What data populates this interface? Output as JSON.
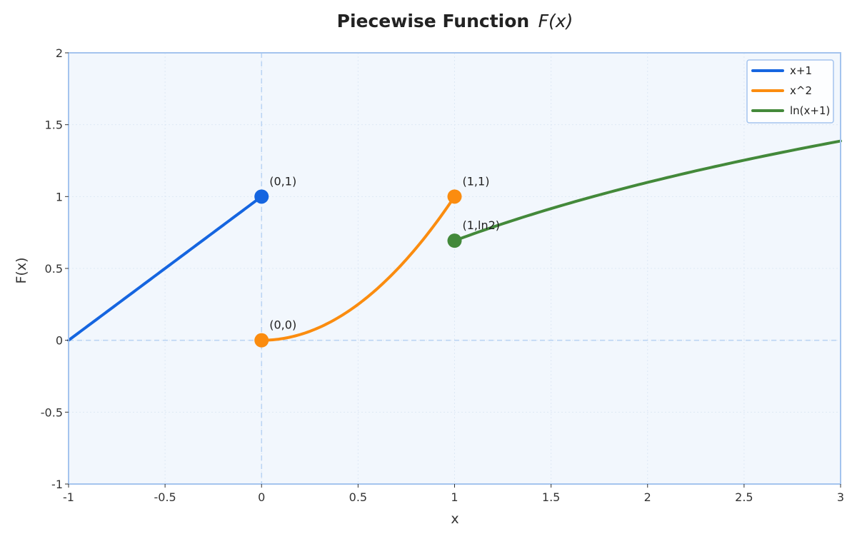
{
  "chart_data": {
    "type": "line",
    "title": "Piecewise Function",
    "title_math": "F(x)",
    "xlabel": "x",
    "ylabel": "F(x)",
    "xlim": [
      -1,
      3
    ],
    "ylim": [
      -1,
      2
    ],
    "x_ticks": [
      -1,
      -0.5,
      0,
      0.5,
      1,
      1.5,
      2,
      2.5,
      3
    ],
    "x_tick_labels": [
      "-1",
      "-0.5",
      "0",
      "0.5",
      "1",
      "1.5",
      "2",
      "2.5",
      "3"
    ],
    "y_ticks": [
      -1,
      -0.5,
      0,
      0.5,
      1,
      1.5,
      2
    ],
    "y_tick_labels": [
      "-1",
      "-0.5",
      "0",
      "0.5",
      "1",
      "1.5",
      "2"
    ],
    "grid": true,
    "legend_position": "top-right",
    "colors": {
      "plot_background": "#f2f7fd",
      "plot_border": "#a4c4ee",
      "grid": "#dde8f5",
      "reference_lines": "#bcd5f3"
    },
    "series": [
      {
        "name": "x+1",
        "color": "#1565e0",
        "formula": "x+1",
        "domain": [
          -1,
          0
        ],
        "x": [
          -1,
          0
        ],
        "y": [
          0,
          1
        ]
      },
      {
        "name": "x^2",
        "color": "#fb8c0f",
        "formula": "x^2",
        "domain": [
          0,
          1
        ],
        "x": [
          0,
          0.1,
          0.2,
          0.3,
          0.4,
          0.5,
          0.6,
          0.7,
          0.8,
          0.9,
          1
        ],
        "y": [
          0,
          0.01,
          0.04,
          0.09,
          0.16,
          0.25,
          0.36,
          0.49,
          0.64,
          0.81,
          1
        ]
      },
      {
        "name": "ln(x+1)",
        "color": "#43893a",
        "formula": "ln(x+1)",
        "domain": [
          1,
          3
        ],
        "x": [
          1,
          1.25,
          1.5,
          1.75,
          2,
          2.25,
          2.5,
          2.75,
          3
        ],
        "y": [
          0.693,
          0.811,
          0.916,
          1.012,
          1.099,
          1.179,
          1.253,
          1.322,
          1.386
        ]
      }
    ],
    "reference_lines": [
      {
        "orientation": "vertical",
        "value": 0
      },
      {
        "orientation": "horizontal",
        "value": 0
      }
    ],
    "points": [
      {
        "x": 0,
        "y": 1,
        "label": "(0,1)",
        "color": "#1565e0"
      },
      {
        "x": 0,
        "y": 0,
        "label": "(0,0)",
        "color": "#fb8c0f"
      },
      {
        "x": 1,
        "y": 1,
        "label": "(1,1)",
        "color": "#fb8c0f"
      },
      {
        "x": 1,
        "y": 0.693,
        "label": "(1,ln2)",
        "color": "#43893a"
      }
    ]
  }
}
